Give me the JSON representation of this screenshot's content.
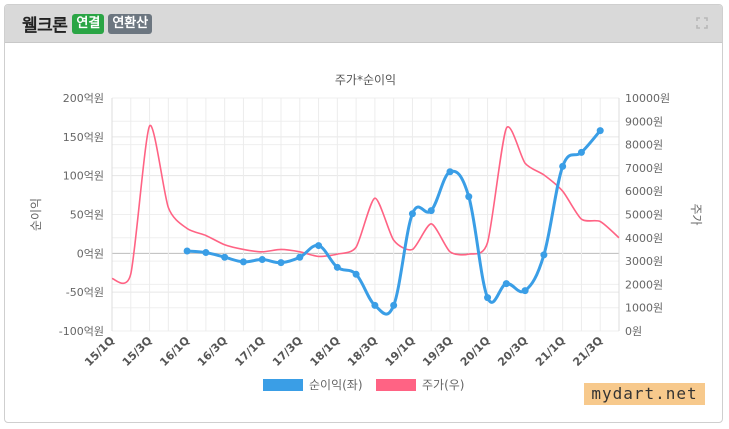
{
  "header": {
    "company": "웰크론",
    "badge_consolidated": "연결",
    "badge_annualized": "연환산"
  },
  "watermark": "mydart.net",
  "colors": {
    "profit": "#3a9ee6",
    "price": "#ff6384",
    "badge_green": "#2aa545",
    "badge_gray": "#6c7680"
  },
  "chart_data": {
    "type": "line",
    "title": "주가*순이익",
    "ylabel_left": "순이익",
    "ylabel_right": "주가",
    "categories": [
      "15/1Q",
      "15/3Q",
      "16/1Q",
      "16/3Q",
      "17/1Q",
      "17/3Q",
      "18/1Q",
      "18/3Q",
      "19/1Q",
      "19/3Q",
      "20/1Q",
      "20/3Q",
      "21/1Q",
      "21/3Q"
    ],
    "y_left": {
      "min": -100,
      "max": 200,
      "step": 50,
      "unit": "억원",
      "ticks": [
        "200억원",
        "150억원",
        "100억원",
        "50억원",
        "0억원",
        "-50억원",
        "-100억원"
      ]
    },
    "y_right": {
      "min": 0,
      "max": 10000,
      "step": 1000,
      "unit": "원",
      "ticks": [
        "10000원",
        "9000원",
        "8000원",
        "7000원",
        "6000원",
        "5000원",
        "4000원",
        "3000원",
        "2000원",
        "1000원",
        "0원"
      ]
    },
    "grid": true,
    "legend_position": "bottom",
    "series": [
      {
        "name": "순이익(좌)",
        "axis": "left",
        "x": [
          "16/1Q",
          "16/2Q",
          "16/3Q",
          "16/4Q",
          "17/1Q",
          "17/2Q",
          "17/3Q",
          "17/4Q",
          "18/1Q",
          "18/2Q",
          "18/3Q",
          "18/4Q",
          "19/1Q",
          "19/2Q",
          "19/3Q",
          "19/4Q",
          "20/1Q",
          "20/2Q",
          "20/3Q",
          "20/4Q",
          "21/1Q",
          "21/2Q",
          "21/3Q"
        ],
        "values": [
          3,
          1,
          -5,
          -11,
          -8,
          -12,
          -5,
          10,
          -18,
          -27,
          -67,
          -67,
          51,
          55,
          105,
          73,
          -57,
          -39,
          -48,
          -2,
          112,
          130,
          158
        ]
      },
      {
        "name": "주가(우)",
        "axis": "right",
        "x": [
          "15/1Q",
          "15/2Q",
          "15/3Q",
          "15/4Q",
          "16/1Q",
          "16/2Q",
          "16/3Q",
          "16/4Q",
          "17/1Q",
          "17/2Q",
          "17/3Q",
          "17/4Q",
          "18/1Q",
          "18/2Q",
          "18/3Q",
          "18/4Q",
          "19/1Q",
          "19/2Q",
          "19/3Q",
          "19/4Q",
          "20/1Q",
          "20/2Q",
          "20/3Q",
          "20/4Q",
          "21/1Q",
          "21/2Q",
          "21/3Q",
          "21/4Q"
        ],
        "values": [
          2250,
          2450,
          8800,
          5300,
          4400,
          4100,
          3700,
          3500,
          3400,
          3500,
          3400,
          3200,
          3300,
          3600,
          5700,
          3900,
          3500,
          4600,
          3400,
          3300,
          3800,
          8700,
          7200,
          6700,
          6000,
          4800,
          4700,
          4000
        ]
      }
    ]
  }
}
